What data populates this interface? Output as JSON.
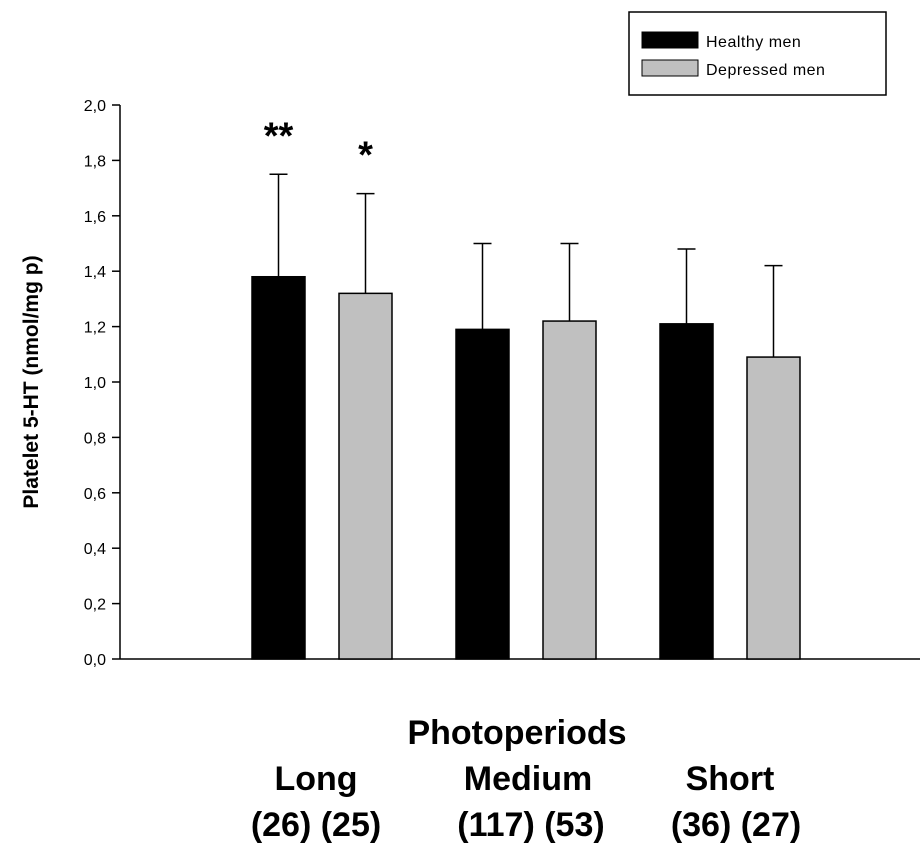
{
  "chart_data": {
    "type": "bar",
    "xlabel": "Photoperiods",
    "ylabel": "Platelet 5-HT (nmol/mg p)",
    "ylim": [
      0,
      2.0
    ],
    "yticks": [
      "0,0",
      "0,2",
      "0,4",
      "0,6",
      "0,8",
      "1,0",
      "1,2",
      "1,4",
      "1,6",
      "1,8",
      "2,0"
    ],
    "yticks_values": [
      0,
      0.2,
      0.4,
      0.6,
      0.8,
      1.0,
      1.2,
      1.4,
      1.6,
      1.8,
      2.0
    ],
    "categories": [
      "Long",
      "Medium",
      "Short"
    ],
    "category_counts": [
      "(26) (25)",
      "(117) (53)",
      "(36) (27)"
    ],
    "series": [
      {
        "name": "Healthy men",
        "color": "#000000",
        "values": [
          1.38,
          1.19,
          1.21
        ],
        "errors": [
          0.37,
          0.31,
          0.27
        ],
        "significance": [
          "**",
          "",
          ""
        ]
      },
      {
        "name": "Depressed men",
        "color": "#c0c0c0",
        "values": [
          1.32,
          1.22,
          1.09
        ],
        "errors": [
          0.36,
          0.28,
          0.33
        ],
        "significance": [
          "*",
          "",
          ""
        ]
      }
    ],
    "legend_position": "top-right",
    "grid": false
  }
}
